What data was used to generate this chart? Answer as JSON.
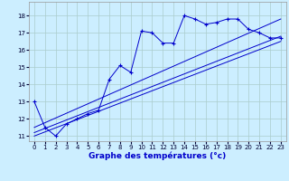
{
  "xlabel": "Graphe des températures (°c)",
  "background_color": "#cceeff",
  "line_color": "#0000cc",
  "grid_color": "#aacccc",
  "xlim": [
    -0.5,
    23.5
  ],
  "ylim": [
    10.7,
    18.8
  ],
  "xticks": [
    0,
    1,
    2,
    3,
    4,
    5,
    6,
    7,
    8,
    9,
    10,
    11,
    12,
    13,
    14,
    15,
    16,
    17,
    18,
    19,
    20,
    21,
    22,
    23
  ],
  "yticks": [
    11,
    12,
    13,
    14,
    15,
    16,
    17,
    18
  ],
  "main_x": [
    0,
    1,
    2,
    3,
    4,
    5,
    6,
    7,
    8,
    9,
    10,
    11,
    12,
    13,
    14,
    15,
    16,
    17,
    18,
    19,
    20,
    21,
    22,
    23
  ],
  "main_y": [
    13.0,
    11.5,
    11.0,
    11.7,
    12.0,
    12.3,
    12.5,
    14.3,
    15.1,
    14.7,
    17.1,
    17.0,
    16.4,
    16.4,
    18.0,
    17.8,
    17.5,
    17.6,
    17.8,
    17.8,
    17.2,
    17.0,
    16.7,
    16.7
  ],
  "line2_x": [
    0,
    23
  ],
  "line2_y": [
    11.5,
    17.8
  ],
  "line3_x": [
    0,
    23
  ],
  "line3_y": [
    11.2,
    16.8
  ],
  "line4_x": [
    0,
    23
  ],
  "line4_y": [
    11.0,
    16.5
  ],
  "xlabel_fontsize": 6.5,
  "tick_fontsize": 5.0
}
